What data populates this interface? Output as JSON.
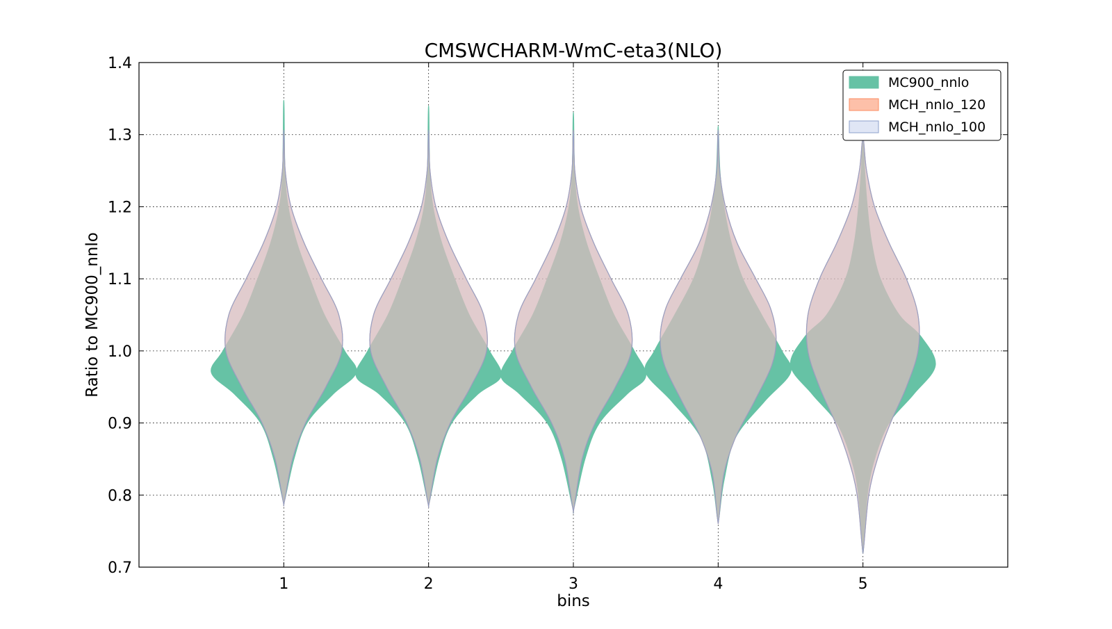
{
  "chart_data": {
    "type": "violin",
    "title": "CMSWCHARM-WmC-eta3(NLO)",
    "xlabel": "bins",
    "ylabel": "Ratio to MC900_nnlo",
    "ylim": [
      0.7,
      1.4
    ],
    "xlim": [
      0,
      6
    ],
    "yticks": [
      0.7,
      0.8,
      0.9,
      1.0,
      1.1,
      1.2,
      1.3,
      1.4
    ],
    "ytick_labels": [
      "0.7",
      "0.8",
      "0.9",
      "1.0",
      "1.1",
      "1.2",
      "1.3",
      "1.4"
    ],
    "categories": [
      "1",
      "2",
      "3",
      "4",
      "5"
    ],
    "grid": true,
    "legend_position": "top-right",
    "series": [
      {
        "name": "MC900_nnlo",
        "color": "#66c2a5",
        "edge": "#66c2a5",
        "opacity": 1.0,
        "violins": [
          {
            "profile": [
              [
                0.792,
                0.005
              ],
              [
                0.85,
                0.07
              ],
              [
                0.9,
                0.16
              ],
              [
                0.94,
                0.34
              ],
              [
                0.97,
                0.5
              ],
              [
                1.0,
                0.42
              ],
              [
                1.05,
                0.28
              ],
              [
                1.1,
                0.18
              ],
              [
                1.15,
                0.09
              ],
              [
                1.2,
                0.03
              ],
              [
                1.25,
                0.008
              ],
              [
                1.337,
                0.002
              ]
            ]
          },
          {
            "profile": [
              [
                0.79,
                0.005
              ],
              [
                0.85,
                0.07
              ],
              [
                0.9,
                0.16
              ],
              [
                0.94,
                0.34
              ],
              [
                0.965,
                0.5
              ],
              [
                1.0,
                0.42
              ],
              [
                1.05,
                0.28
              ],
              [
                1.1,
                0.18
              ],
              [
                1.15,
                0.09
              ],
              [
                1.2,
                0.03
              ],
              [
                1.25,
                0.008
              ],
              [
                1.33,
                0.002
              ]
            ]
          },
          {
            "profile": [
              [
                0.783,
                0.005
              ],
              [
                0.85,
                0.08
              ],
              [
                0.9,
                0.18
              ],
              [
                0.94,
                0.37
              ],
              [
                0.965,
                0.5
              ],
              [
                1.0,
                0.42
              ],
              [
                1.05,
                0.28
              ],
              [
                1.1,
                0.18
              ],
              [
                1.15,
                0.09
              ],
              [
                1.2,
                0.03
              ],
              [
                1.25,
                0.008
              ],
              [
                1.322,
                0.002
              ]
            ]
          },
          {
            "profile": [
              [
                0.768,
                0.005
              ],
              [
                0.82,
                0.04
              ],
              [
                0.88,
                0.12
              ],
              [
                0.93,
                0.32
              ],
              [
                0.97,
                0.5
              ],
              [
                1.0,
                0.44
              ],
              [
                1.05,
                0.3
              ],
              [
                1.1,
                0.17
              ],
              [
                1.15,
                0.09
              ],
              [
                1.2,
                0.04
              ],
              [
                1.25,
                0.012
              ],
              [
                1.305,
                0.002
              ]
            ]
          },
          {
            "profile": [
              [
                0.728,
                0.005
              ],
              [
                0.8,
                0.03
              ],
              [
                0.85,
                0.08
              ],
              [
                0.9,
                0.18
              ],
              [
                0.94,
                0.35
              ],
              [
                0.98,
                0.5
              ],
              [
                1.02,
                0.4
              ],
              [
                1.05,
                0.25
              ],
              [
                1.1,
                0.12
              ],
              [
                1.15,
                0.06
              ],
              [
                1.2,
                0.03
              ],
              [
                1.25,
                0.012
              ],
              [
                1.29,
                0.004
              ]
            ]
          }
        ]
      },
      {
        "name": "MCH_nnlo_120",
        "color": "#fc8d62",
        "edge": "#fc8d62",
        "opacity": 0.5,
        "violins": [
          {
            "profile": [
              [
                0.792,
                0.005
              ],
              [
                0.85,
                0.06
              ],
              [
                0.9,
                0.15
              ],
              [
                0.95,
                0.29
              ],
              [
                1.0,
                0.4
              ],
              [
                1.05,
                0.38
              ],
              [
                1.1,
                0.26
              ],
              [
                1.15,
                0.14
              ],
              [
                1.2,
                0.05
              ],
              [
                1.25,
                0.01
              ],
              [
                1.3,
                0.002
              ]
            ]
          },
          {
            "profile": [
              [
                0.79,
                0.005
              ],
              [
                0.85,
                0.06
              ],
              [
                0.9,
                0.15
              ],
              [
                0.95,
                0.29
              ],
              [
                1.0,
                0.4
              ],
              [
                1.05,
                0.38
              ],
              [
                1.1,
                0.26
              ],
              [
                1.15,
                0.14
              ],
              [
                1.2,
                0.05
              ],
              [
                1.25,
                0.01
              ],
              [
                1.3,
                0.002
              ]
            ]
          },
          {
            "profile": [
              [
                0.783,
                0.005
              ],
              [
                0.85,
                0.06
              ],
              [
                0.9,
                0.15
              ],
              [
                0.95,
                0.29
              ],
              [
                1.0,
                0.4
              ],
              [
                1.05,
                0.38
              ],
              [
                1.1,
                0.26
              ],
              [
                1.15,
                0.14
              ],
              [
                1.2,
                0.05
              ],
              [
                1.25,
                0.01
              ],
              [
                1.3,
                0.002
              ]
            ]
          },
          {
            "profile": [
              [
                0.768,
                0.005
              ],
              [
                0.83,
                0.04
              ],
              [
                0.88,
                0.12
              ],
              [
                0.93,
                0.25
              ],
              [
                0.98,
                0.37
              ],
              [
                1.02,
                0.4
              ],
              [
                1.06,
                0.36
              ],
              [
                1.1,
                0.26
              ],
              [
                1.15,
                0.13
              ],
              [
                1.2,
                0.05
              ],
              [
                1.25,
                0.01
              ],
              [
                1.3,
                0.002
              ]
            ]
          },
          {
            "profile": [
              [
                0.728,
                0.005
              ],
              [
                0.8,
                0.04
              ],
              [
                0.85,
                0.1
              ],
              [
                0.9,
                0.19
              ],
              [
                0.95,
                0.3
              ],
              [
                1.0,
                0.38
              ],
              [
                1.05,
                0.38
              ],
              [
                1.1,
                0.3
              ],
              [
                1.15,
                0.18
              ],
              [
                1.2,
                0.08
              ],
              [
                1.25,
                0.025
              ],
              [
                1.29,
                0.005
              ]
            ]
          }
        ]
      },
      {
        "name": "MCH_nnlo_100",
        "color": "#c6d1ec",
        "edge": "#8da0cb",
        "opacity": 0.5,
        "violins": [
          {
            "profile": [
              [
                0.792,
                0.005
              ],
              [
                0.85,
                0.06
              ],
              [
                0.9,
                0.15
              ],
              [
                0.95,
                0.29
              ],
              [
                1.0,
                0.4
              ],
              [
                1.05,
                0.38
              ],
              [
                1.1,
                0.26
              ],
              [
                1.15,
                0.14
              ],
              [
                1.2,
                0.05
              ],
              [
                1.25,
                0.01
              ],
              [
                1.3,
                0.002
              ]
            ]
          },
          {
            "profile": [
              [
                0.79,
                0.005
              ],
              [
                0.85,
                0.06
              ],
              [
                0.9,
                0.15
              ],
              [
                0.95,
                0.29
              ],
              [
                1.0,
                0.4
              ],
              [
                1.05,
                0.38
              ],
              [
                1.1,
                0.26
              ],
              [
                1.15,
                0.14
              ],
              [
                1.2,
                0.05
              ],
              [
                1.25,
                0.01
              ],
              [
                1.3,
                0.002
              ]
            ]
          },
          {
            "profile": [
              [
                0.783,
                0.005
              ],
              [
                0.85,
                0.06
              ],
              [
                0.9,
                0.15
              ],
              [
                0.95,
                0.29
              ],
              [
                1.0,
                0.4
              ],
              [
                1.05,
                0.38
              ],
              [
                1.1,
                0.26
              ],
              [
                1.15,
                0.14
              ],
              [
                1.2,
                0.05
              ],
              [
                1.25,
                0.01
              ],
              [
                1.3,
                0.002
              ]
            ]
          },
          {
            "profile": [
              [
                0.768,
                0.005
              ],
              [
                0.83,
                0.04
              ],
              [
                0.88,
                0.12
              ],
              [
                0.93,
                0.25
              ],
              [
                0.98,
                0.37
              ],
              [
                1.02,
                0.4
              ],
              [
                1.06,
                0.36
              ],
              [
                1.1,
                0.26
              ],
              [
                1.15,
                0.13
              ],
              [
                1.2,
                0.05
              ],
              [
                1.25,
                0.01
              ],
              [
                1.3,
                0.002
              ]
            ]
          },
          {
            "profile": [
              [
                0.728,
                0.005
              ],
              [
                0.8,
                0.04
              ],
              [
                0.85,
                0.1
              ],
              [
                0.9,
                0.19
              ],
              [
                0.95,
                0.3
              ],
              [
                1.0,
                0.38
              ],
              [
                1.05,
                0.38
              ],
              [
                1.1,
                0.3
              ],
              [
                1.15,
                0.18
              ],
              [
                1.2,
                0.08
              ],
              [
                1.25,
                0.025
              ],
              [
                1.29,
                0.005
              ]
            ]
          }
        ]
      }
    ]
  }
}
